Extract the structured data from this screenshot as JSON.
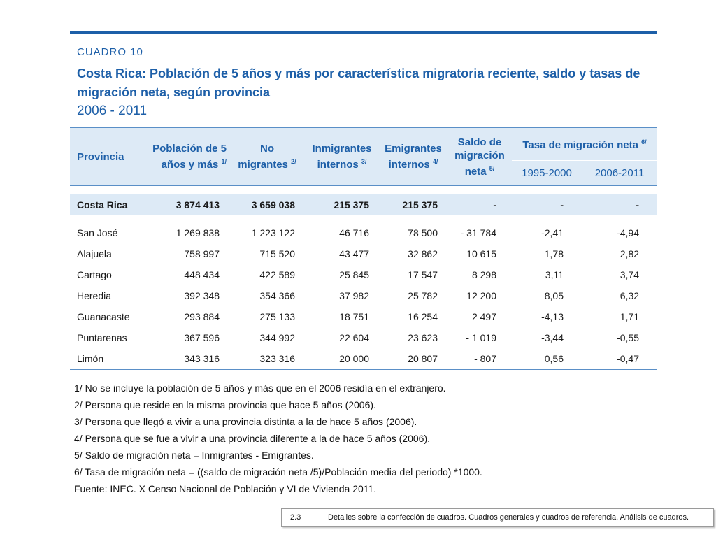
{
  "header": {
    "label": "CUADRO 10",
    "title_line1": "Costa Rica: Población de 5 años y más por característica migratoria reciente, saldo y tasas de",
    "title_line2": "migración neta, según provincia",
    "period": "2006 - 2011"
  },
  "table": {
    "columns": {
      "provincia": "Provincia",
      "poblacion_1": "Población de 5",
      "poblacion_2": "años y más",
      "poblacion_sup": "1/",
      "no_migrantes_1": "No",
      "no_migrantes_2": "migrantes",
      "no_migrantes_sup": "2/",
      "inmigrantes_1": "Inmigrantes",
      "inmigrantes_2": "internos",
      "inmigrantes_sup": "3/",
      "emigrantes_1": "Emigrantes",
      "emigrantes_2": "internos",
      "emigrantes_sup": "4/",
      "saldo_1": "Saldo de",
      "saldo_2": "migración",
      "saldo_3": "neta",
      "saldo_sup": "5/",
      "tasa": "Tasa de migración neta",
      "tasa_sup": "6/",
      "tasa_1995": "1995-2000",
      "tasa_2006": "2006-2011"
    },
    "total": [
      "Costa Rica",
      "3 874 413",
      "3 659 038",
      "215 375",
      "215 375",
      "-",
      "-",
      "-"
    ],
    "rows": [
      [
        "San José",
        "1 269 838",
        "1 223 122",
        "46 716",
        "78 500",
        "- 31 784",
        "-2,41",
        "-4,94"
      ],
      [
        "Alajuela",
        "758 997",
        "715 520",
        "43 477",
        "32 862",
        "10 615",
        "1,78",
        "2,82"
      ],
      [
        "Cartago",
        "448 434",
        "422 589",
        "25 845",
        "17 547",
        "8 298",
        "3,11",
        "3,74"
      ],
      [
        "Heredia",
        "392 348",
        "354 366",
        "37 982",
        "25 782",
        "12 200",
        "8,05",
        "6,32"
      ],
      [
        "Guanacaste",
        "293 884",
        "275 133",
        "18 751",
        "16 254",
        "2 497",
        "-4,13",
        "1,71"
      ],
      [
        "Puntarenas",
        "367 596",
        "344 992",
        "22 604",
        "23 623",
        "- 1 019",
        "-3,44",
        "-0,55"
      ],
      [
        "Limón",
        "343 316",
        "323 316",
        "20 000",
        "20 807",
        "- 807",
        "0,56",
        "-0,47"
      ]
    ]
  },
  "notes": [
    "1/ No se incluye la población de 5 años y más que en el 2006 residía en el extranjero.",
    "2/ Persona que reside en la misma provincia que hace 5 años (2006).",
    "3/ Persona que llegó a vivir a una provincia distinta a la de hace 5 años (2006).",
    "4/ Persona que se fue a vivir a una provincia diferente a la de hace 5 años (2006).",
    "5/ Saldo de migración neta = Inmigrantes - Emigrantes.",
    "6/ Tasa de migración neta = ((saldo de migración neta /5)/Población media del periodo) *1000.",
    "Fuente: INEC. X Censo Nacional de Población y VI de Vivienda 2011."
  ],
  "footer": {
    "section": "2.3",
    "text": "Detalles sobre la confección de cuadros. Cuadros generales y cuadros de referencia. Análisis de cuadros."
  },
  "colors": {
    "accent": "#1d5fa8",
    "header_bg": "#ddeaf6"
  }
}
